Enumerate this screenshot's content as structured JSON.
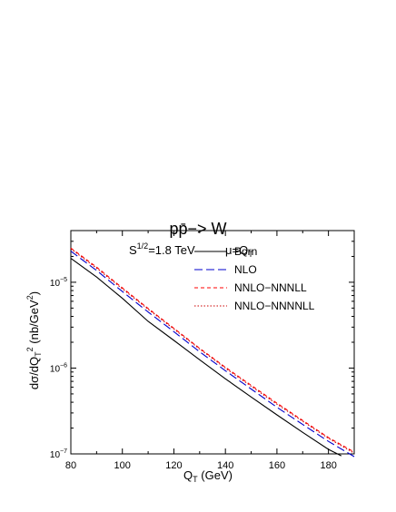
{
  "chart_data": {
    "type": "line",
    "title_main": "pp̄−> W",
    "title_energy_prefix": "S",
    "title_energy_sup": "1/2",
    "title_energy_suffix": "=1.8 TeV",
    "title_scale": "μ=Q",
    "title_scale_sub": "T",
    "xlabel_main": "Q",
    "xlabel_sub": "T",
    "xlabel_unit": " (GeV)",
    "ylabel_prefix": "dσ/dQ",
    "ylabel_sub": "T",
    "ylabel_sup": "2",
    "ylabel_unit_open": " (nb/GeV",
    "ylabel_unit_sup": "2",
    "ylabel_unit_close": ")",
    "xlim": [
      80,
      190
    ],
    "ylim": [
      1e-07,
      4e-05
    ],
    "yscale": "log",
    "x_ticks": [
      80,
      100,
      120,
      140,
      160,
      180
    ],
    "y_ticks": [
      {
        "value": 1e-05,
        "base": "10",
        "exp": "−5"
      },
      {
        "value": 1e-06,
        "base": "10",
        "exp": "−6"
      },
      {
        "value": 1e-07,
        "base": "10",
        "exp": "−7"
      }
    ],
    "legend_position": "top-right",
    "series": [
      {
        "name": "Born",
        "color": "#000000",
        "dash": "solid",
        "x": [
          80,
          90,
          100,
          110,
          120,
          130,
          140,
          150,
          160,
          170,
          180,
          185
        ],
        "y": [
          1.9e-05,
          1.15e-05,
          6.5e-06,
          3.5e-06,
          2.1e-06,
          1.25e-06,
          7.5e-07,
          4.6e-07,
          2.85e-07,
          1.78e-07,
          1.13e-07,
          9.5e-08
        ]
      },
      {
        "name": "NLO",
        "color": "#0000cc",
        "dash": "longdash",
        "x": [
          80,
          90,
          100,
          110,
          120,
          130,
          140,
          150,
          160,
          170,
          180,
          190
        ],
        "y": [
          2.3e-05,
          1.37e-05,
          7.8e-06,
          4.5e-06,
          2.65e-06,
          1.55e-06,
          9.3e-07,
          5.7e-07,
          3.5e-07,
          2.2e-07,
          1.4e-07,
          9.3e-08
        ]
      },
      {
        "name": "NNLO−NNNLL",
        "color": "#ff0000",
        "dash": "dash",
        "x": [
          80,
          90,
          100,
          110,
          120,
          130,
          140,
          150,
          160,
          170,
          180,
          190
        ],
        "y": [
          2.5e-05,
          1.5e-05,
          8.6e-06,
          4.95e-06,
          2.9e-06,
          1.7e-06,
          1.02e-06,
          6.3e-07,
          3.9e-07,
          2.45e-07,
          1.55e-07,
          1.05e-07
        ]
      },
      {
        "name": "NNLO−NNNNLL",
        "color": "#cc0000",
        "dash": "dot",
        "x": [
          80,
          90,
          100,
          110,
          120,
          130,
          140,
          150,
          160,
          170,
          180,
          190
        ],
        "y": [
          2.45e-05,
          1.46e-05,
          8.4e-06,
          4.85e-06,
          2.85e-06,
          1.67e-06,
          1e-06,
          6.15e-07,
          3.8e-07,
          2.4e-07,
          1.52e-07,
          1.02e-07
        ]
      }
    ]
  }
}
